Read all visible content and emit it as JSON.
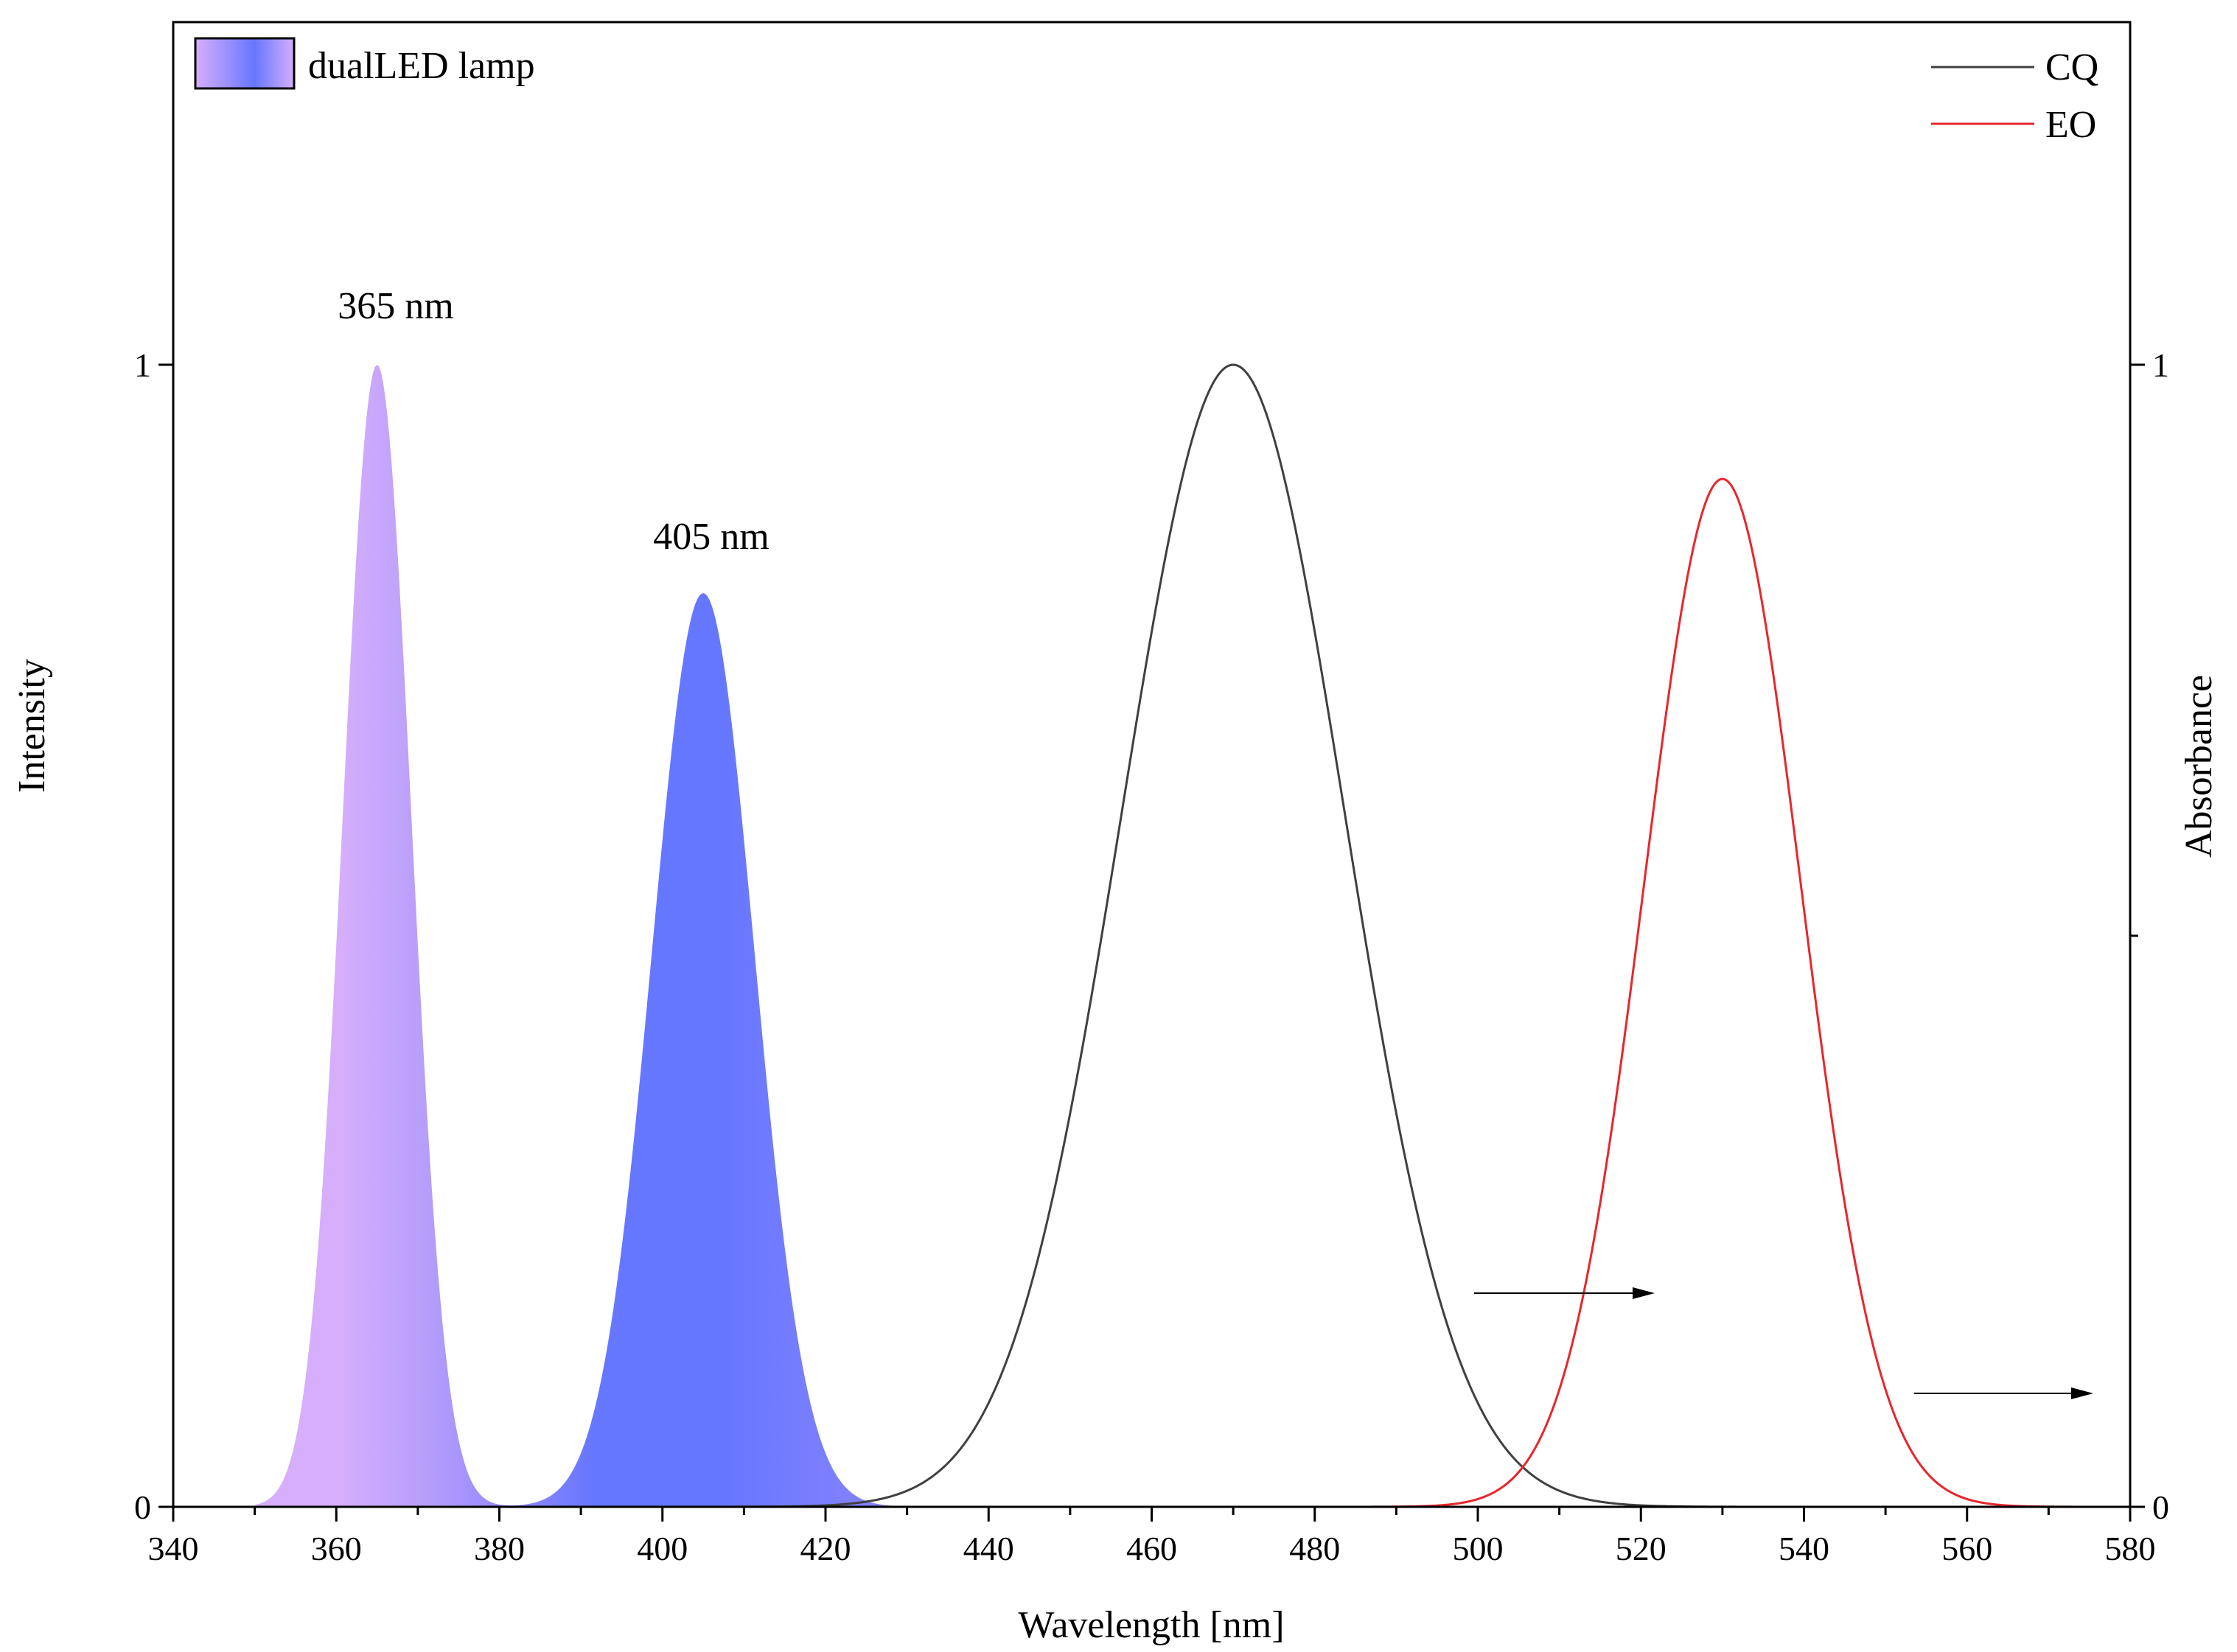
{
  "chart_data": {
    "type": "area",
    "xlabel": "Wavelength [nm]",
    "ylabel_left": "Intensity",
    "ylabel_right": "Absorbance",
    "xlim": [
      340,
      580
    ],
    "ylim_left": [
      0,
      1
    ],
    "ylim_right": [
      0,
      1
    ],
    "x_ticks": [
      340,
      360,
      380,
      400,
      420,
      440,
      460,
      480,
      500,
      520,
      540,
      560,
      580
    ],
    "y_left_ticks": [
      "0",
      "1"
    ],
    "y_right_ticks": [
      "0",
      "1"
    ],
    "grid": false,
    "legend": [
      {
        "name": "dualLED lamp",
        "position": "top-left"
      },
      {
        "name": "CQ",
        "position": "top-right",
        "color": "#404040"
      },
      {
        "name": "EO",
        "position": "top-right",
        "color": "#e8262c"
      }
    ],
    "annotations": [
      {
        "text": "365 nm",
        "x": 365,
        "y": 1.0
      },
      {
        "text": "405 nm",
        "x": 405,
        "y": 0.8
      }
    ],
    "series": [
      {
        "name": "dualLED lamp",
        "axis": "left",
        "kind": "filled-area",
        "color_start": "#d6aefc",
        "color_mid": "#6677ff",
        "color_end": "#8b85ff",
        "x_range": [
          350,
          430
        ],
        "peaks": [
          {
            "center": 365,
            "height": 1.0,
            "sigma": 4.2
          },
          {
            "center": 405,
            "height": 0.8,
            "sigma": 6.3
          }
        ]
      },
      {
        "name": "CQ",
        "axis": "right",
        "kind": "line",
        "color": "#404040",
        "x_range": [
          340,
          580
        ],
        "peak": {
          "center": 470,
          "height": 1.0,
          "sigma": 13.7
        }
      },
      {
        "name": "EO",
        "axis": "right",
        "kind": "line",
        "color": "#e8262c",
        "x_range": [
          340,
          580
        ],
        "peak": {
          "center": 530,
          "height": 0.9,
          "sigma": 9.6
        }
      }
    ]
  }
}
